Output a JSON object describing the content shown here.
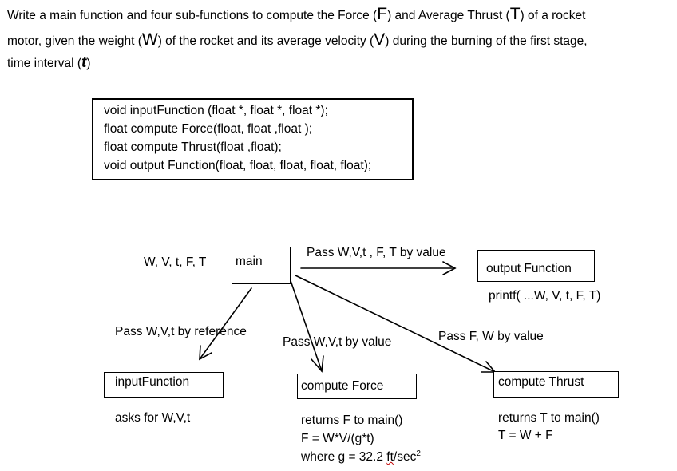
{
  "intro": {
    "l1a": "Write a main function and four sub-functions to compute the Force (",
    "F": "F",
    "l1b": ") and Average Thrust (",
    "T": "T",
    "l1c": ") of a rocket",
    "l2a": "motor, given the weight (",
    "W": "W",
    "l2b": ") of the rocket and its average velocity (",
    "V": "V",
    "l2c": ") during the burning of the first stage,",
    "l3a": "time interval (",
    "t": "t",
    "l3b": ")"
  },
  "prototypes": [
    "void  inputFunction (float *, float *, float  *);",
    "float  compute Force(float, float ,float );",
    "float  compute Thrust(float ,float);",
    "void  output Function(float, float, float, float, float);"
  ],
  "main": {
    "label": "main",
    "vars": "W, V, t, F, T"
  },
  "output_function": {
    "label": "output Function",
    "note": "printf( ...W, V, t, F, T)"
  },
  "input_function": {
    "label": "inputFunction",
    "note": "asks  for W,V,t"
  },
  "compute_force": {
    "label": "compute Force",
    "note1": "returns  F to main()",
    "note2": "F = W*V/(g*t)",
    "note3a": "where g = 32.2 ",
    "note3b": "ft",
    "note3c": "/sec",
    "note3sup": "2"
  },
  "compute_thrust": {
    "label": "compute Thrust",
    "note1": "returns  T to main()",
    "note2": "T = W + F"
  },
  "edges": {
    "to_output": "Pass  W,V,t , F, T by  value",
    "to_input": "Pass W,V,t by reference",
    "to_force": "Pass  W,V,t  by  value",
    "to_thrust": "Pass  F, W  by  value"
  }
}
